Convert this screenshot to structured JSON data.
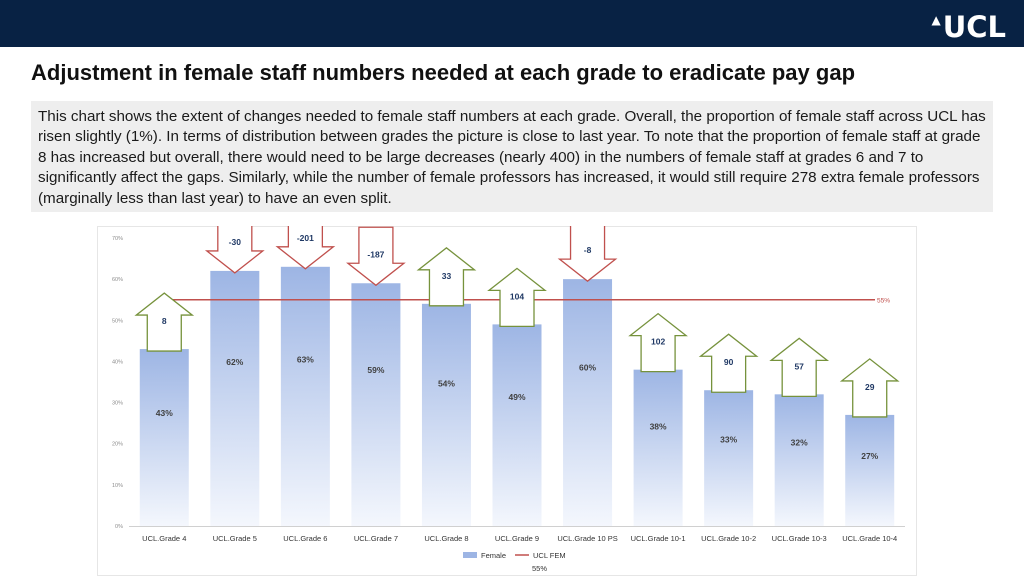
{
  "header": {
    "logo_text": "UCL",
    "bar_color": "#082244"
  },
  "page_title": "Adjustment in female staff numbers needed at each grade to eradicate pay gap",
  "description": "This chart shows the extent of changes needed to female staff numbers at each grade. Overall, the proportion of female staff across UCL has risen slightly (1%).  In terms of distribution between grades the picture is close to last year. To note that the proportion of female staff at grade 8 has increased but overall, there would need to be large decreases (nearly 400) in the numbers of female staff at grades 6 and 7 to significantly affect the gaps. Similarly, while the number of female professors has increased, it would still require 278 extra female professors (marginally less than last year) to have an even split.",
  "chart_data": {
    "type": "bar",
    "categories": [
      "UCL.Grade 4",
      "UCL.Grade 5",
      "UCL.Grade 6",
      "UCL.Grade 7",
      "UCL.Grade 8",
      "UCL.Grade 9",
      "UCL.Grade 10 PS",
      "UCL.Grade 10-1",
      "UCL.Grade 10-2",
      "UCL.Grade 10-3",
      "UCL.Grade 10-4"
    ],
    "series": [
      {
        "name": "Female",
        "values": [
          43,
          62,
          63,
          59,
          54,
          49,
          60,
          38,
          33,
          32,
          27
        ],
        "labels": [
          "43%",
          "62%",
          "63%",
          "59%",
          "54%",
          "49%",
          "60%",
          "38%",
          "33%",
          "32%",
          "27%"
        ],
        "color": "#9db5e4"
      }
    ],
    "reference_line": {
      "name": "UCL FEM",
      "value": 55,
      "label": "55%",
      "color": "#c0504d"
    },
    "adjustments": [
      8,
      -30,
      -201,
      -187,
      33,
      104,
      -8,
      102,
      90,
      57,
      29
    ],
    "adjustment_labels": [
      "8",
      "-30",
      "-201",
      "-187",
      "33",
      "104",
      "-8",
      "102",
      "90",
      "57",
      "29"
    ],
    "adjustment_colors": {
      "increase": "#76923c",
      "decrease": "#c0504d"
    },
    "y_ticks": [
      "0%",
      "10%",
      "20%",
      "30%",
      "40%",
      "50%",
      "60%",
      "70%"
    ],
    "ylim": [
      0,
      70
    ],
    "legend": {
      "items": [
        "Female",
        "UCL FEM"
      ],
      "sub_label": "55%",
      "position": "bottom"
    },
    "grid": false
  }
}
